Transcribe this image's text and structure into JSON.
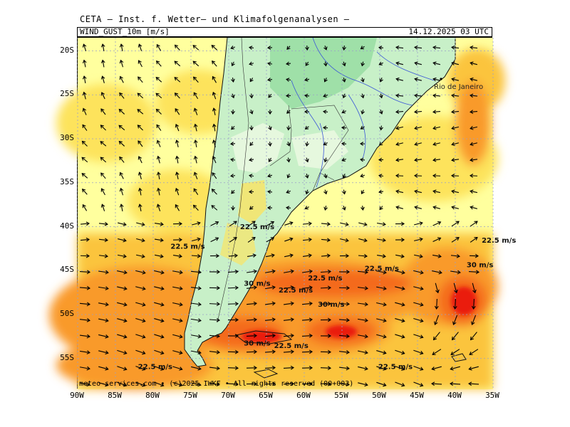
{
  "header": {
    "title": "CETA – Inst. f. Wetter– und Klimafolgenanalysen –",
    "variable": "WIND_GUST_10m [m/s]",
    "valid_time": "14.12.2025 03 UTC"
  },
  "map": {
    "lat_labels": [
      "20S",
      "25S",
      "30S",
      "35S",
      "40S",
      "45S",
      "50S",
      "55S"
    ],
    "lat_values": [
      20,
      25,
      30,
      35,
      40,
      45,
      50,
      55
    ],
    "lon_labels": [
      "90W",
      "85W",
      "80W",
      "75W",
      "70W",
      "65W",
      "60W",
      "55W",
      "50W",
      "45W",
      "40W",
      "35W"
    ],
    "lon_values": [
      90,
      85,
      80,
      75,
      70,
      65,
      60,
      55,
      50,
      45,
      40,
      35
    ],
    "lat_range": [
      18.5,
      58.5
    ],
    "lon_range": [
      90,
      35
    ],
    "city_label": "Rio de Janeiro",
    "contour_labels": [
      {
        "text": "22.5 m/s",
        "lon": 68.5,
        "lat": 40.3
      },
      {
        "text": "22.5 m/s",
        "lon": 77.7,
        "lat": 42.5
      },
      {
        "text": "22.5 m/s",
        "lon": 52,
        "lat": 45.0
      },
      {
        "text": "22.5 m/s",
        "lon": 36.5,
        "lat": 41.8
      },
      {
        "text": "22.5 m/s",
        "lon": 59.5,
        "lat": 46.1
      },
      {
        "text": "22.5 m/s",
        "lon": 63.4,
        "lat": 47.5
      },
      {
        "text": "22.5 m/s",
        "lon": 64,
        "lat": 53.8
      },
      {
        "text": "22.5 m/s",
        "lon": 82,
        "lat": 56.2
      },
      {
        "text": "22.5 m/s",
        "lon": 50.2,
        "lat": 56.2
      },
      {
        "text": "30 m/s",
        "lon": 68,
        "lat": 46.7
      },
      {
        "text": "30 m/s",
        "lon": 58.2,
        "lat": 49.1
      },
      {
        "text": "30 m/s",
        "lon": 38.5,
        "lat": 44.6
      },
      {
        "text": "30 m/s",
        "lon": 68,
        "lat": 53.5
      }
    ],
    "colors": {
      "land_light": "#e6f8de",
      "land_mid": "#c0eec0",
      "land_green": "#9fe0a8",
      "gust_15": "#ffff9e",
      "gust_20": "#fde35c",
      "gust_25": "#fbc43c",
      "gust_30": "#f99a2a",
      "gust_35": "#f46a1c",
      "gust_40": "#ea1c10",
      "grid": "#9aa0c8",
      "rivers": "#3b56d8"
    }
  },
  "footer": {
    "copyright": "meteo-services.com • (c)2025 IWKF • All rights reserved (00+003)"
  }
}
